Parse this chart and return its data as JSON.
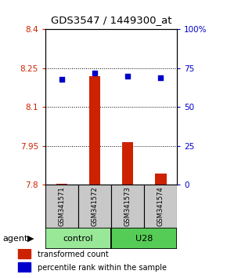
{
  "title": "GDS3547 / 1449300_at",
  "samples": [
    "GSM341571",
    "GSM341572",
    "GSM341573",
    "GSM341574"
  ],
  "bar_values": [
    7.805,
    8.22,
    7.965,
    7.845
  ],
  "bar_base": 7.8,
  "percentile_values": [
    68,
    72,
    70,
    69
  ],
  "ylim_left": [
    7.8,
    8.4
  ],
  "ylim_right": [
    0,
    100
  ],
  "yticks_left": [
    7.8,
    7.95,
    8.1,
    8.25,
    8.4
  ],
  "ytick_labels_left": [
    "7.8",
    "7.95",
    "8.1",
    "8.25",
    "8.4"
  ],
  "yticks_right": [
    0,
    25,
    50,
    75,
    100
  ],
  "ytick_labels_right": [
    "0",
    "25",
    "50",
    "75",
    "100%"
  ],
  "grid_lines": [
    7.95,
    8.1,
    8.25
  ],
  "bar_color": "#cc2200",
  "dot_color": "#0000cc",
  "sample_box_color": "#c8c8c8",
  "ctrl_color": "#98e898",
  "u28_color": "#55cc55",
  "legend_items": [
    {
      "color": "#cc2200",
      "label": "transformed count"
    },
    {
      "color": "#0000cc",
      "label": "percentile rank within the sample"
    }
  ]
}
